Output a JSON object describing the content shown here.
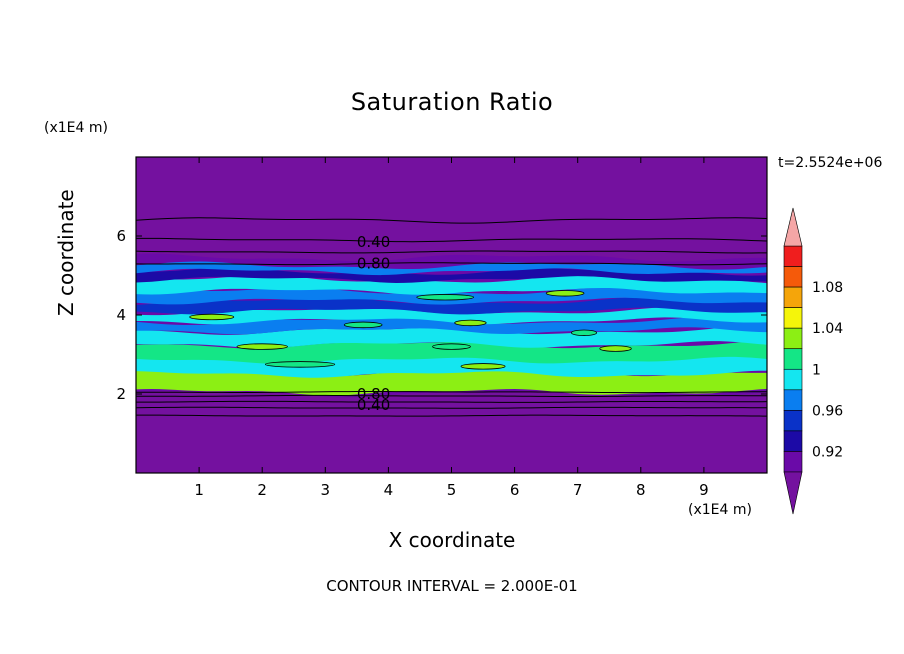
{
  "chart_data": {
    "type": "heatmap",
    "title": "Saturation Ratio",
    "xlabel": "X coordinate",
    "ylabel": "Z coordinate",
    "x_unit_label": "(x1E4 m)",
    "y_unit_label": "(x1E4 m)",
    "timestamp": "t=2.5524e+06",
    "footnote": "CONTOUR INTERVAL = 2.000E-01",
    "xlim": [
      0,
      10
    ],
    "ylim": [
      0,
      8
    ],
    "x_ticks": [
      "1",
      "2",
      "3",
      "4",
      "5",
      "6",
      "7",
      "8",
      "9"
    ],
    "y_ticks": [
      "2",
      "4",
      "6"
    ],
    "contour_labels": [
      {
        "text": "0.40",
        "x": 3.5,
        "y": 5.85
      },
      {
        "text": "0.80",
        "x": 3.5,
        "y": 5.3
      },
      {
        "text": "0.80",
        "x": 3.5,
        "y": 2.0
      },
      {
        "text": "0.40",
        "x": 3.5,
        "y": 1.72
      }
    ],
    "colorbar": {
      "ticks": [
        "0.92",
        "0.96",
        "1",
        "1.04",
        "1.08"
      ],
      "levels": [
        0.9,
        0.92,
        0.94,
        0.96,
        0.98,
        1.0,
        1.02,
        1.04,
        1.06,
        1.08,
        1.1
      ],
      "colors": [
        "#6a0aa8",
        "#1c0aa6",
        "#0a32c8",
        "#0a7ef0",
        "#14e6f0",
        "#14e686",
        "#8cef14",
        "#f5f50a",
        "#f5a50a",
        "#f55a0a",
        "#f01e1e"
      ],
      "under_color": "#74119f",
      "over_color": "#f5a6a6"
    },
    "field_description_bands_z": [
      {
        "z_range": [
          0,
          2.0
        ],
        "value": "below 0.90"
      },
      {
        "z_range": [
          2.0,
          5.4
        ],
        "value": "0.90 to 1.02"
      },
      {
        "z_range": [
          5.4,
          8.0
        ],
        "value": "below 0.90"
      }
    ]
  }
}
